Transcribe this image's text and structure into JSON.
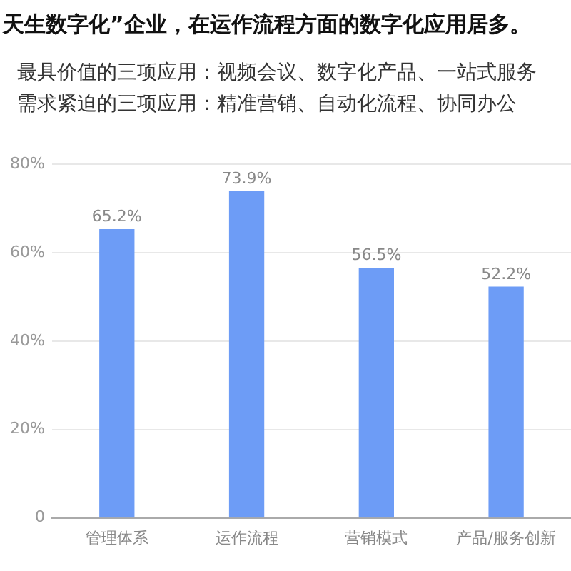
{
  "chart_data": {
    "type": "bar",
    "title": "天生数字化”企业，在运作流程方面的数字化应用居多。",
    "subtitle": "最具价值的三项应用：视频会议、数字化产品、一站式服务",
    "annotations": [
      "需求紧迫的三项应用：精准营销、自动化流程、协同办公"
    ],
    "categories": [
      "管理体系",
      "运作流程",
      "营销模式",
      "产品/服务创新"
    ],
    "values": [
      65.2,
      73.9,
      56.5,
      52.2
    ],
    "value_labels": [
      "65.2%",
      "73.9%",
      "56.5%",
      "52.2%"
    ],
    "color": "#6d9cf6",
    "ylim": [
      0,
      80
    ],
    "yticks": [
      {
        "value": 0,
        "label": "0"
      },
      {
        "value": 20,
        "label": "20%"
      },
      {
        "value": 40,
        "label": "40%"
      },
      {
        "value": 60,
        "label": "60%"
      },
      {
        "value": 80,
        "label": "80%"
      }
    ],
    "grid": "y"
  }
}
